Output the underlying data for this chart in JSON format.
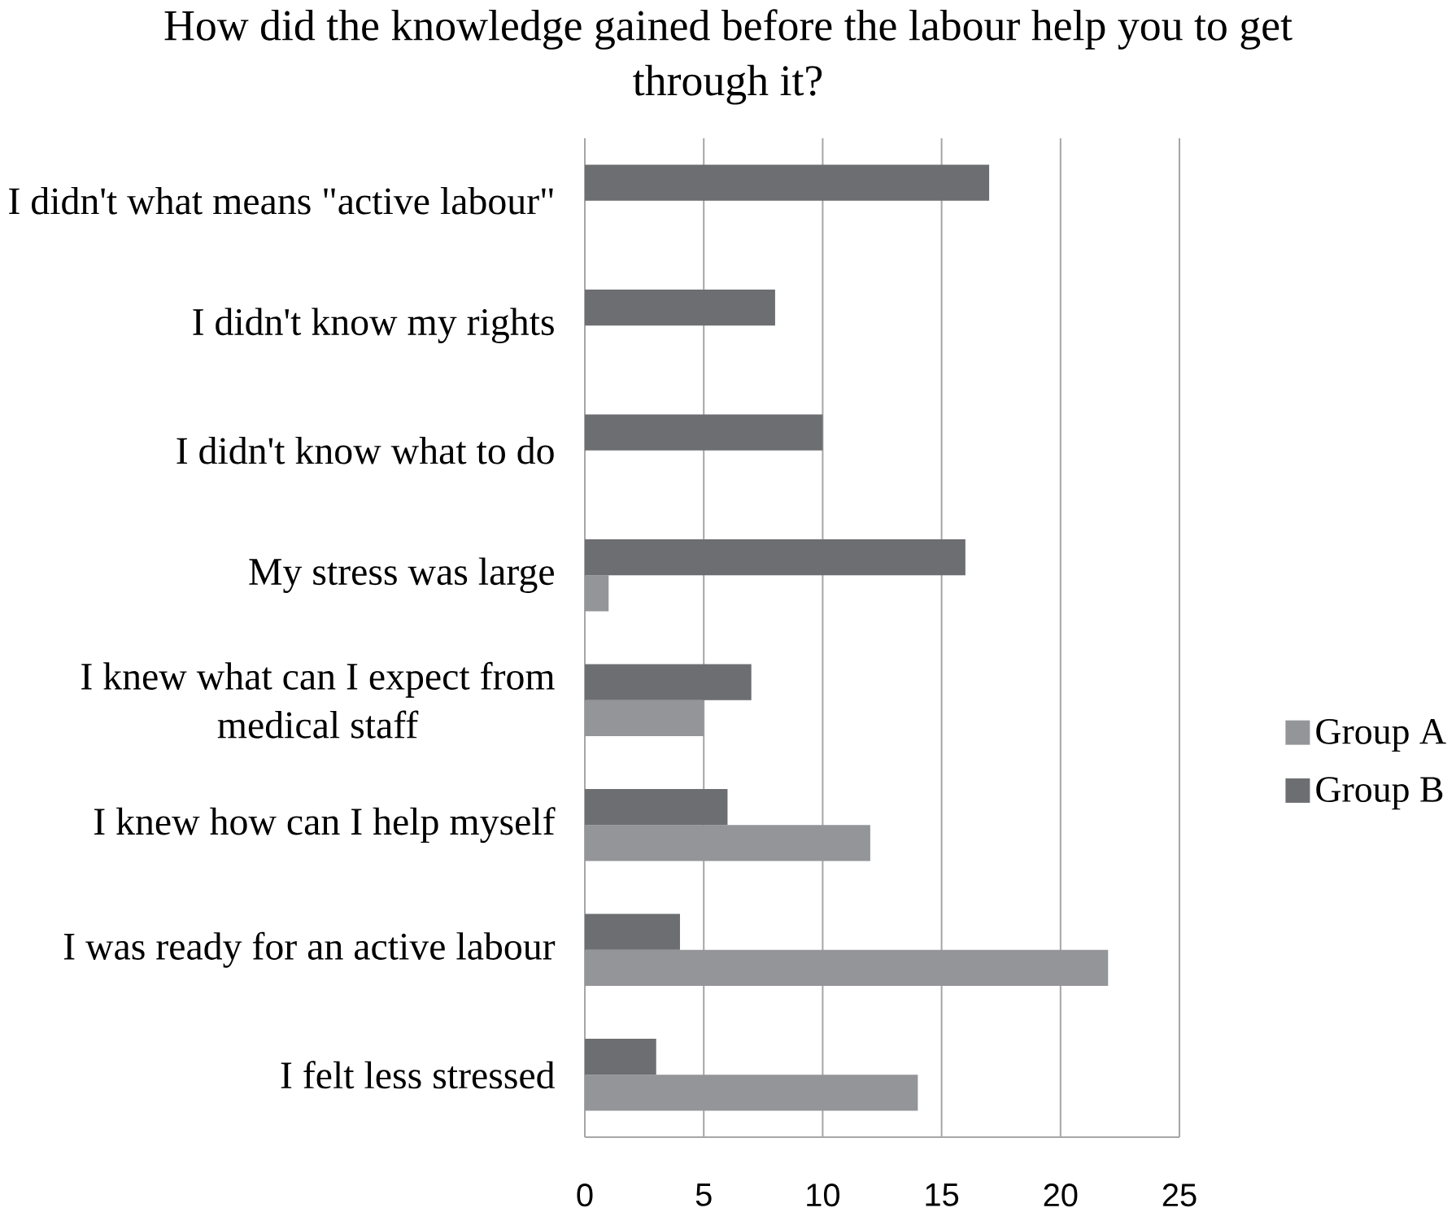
{
  "chart_data": {
    "type": "bar",
    "orientation": "horizontal",
    "title": "How did the knowledge gained before the labour help you to get through it?",
    "categories": [
      "I didn't what means \"active labour\"",
      "I didn't know my rights",
      "I didn't know what to do",
      "My stress was large",
      "I knew what can I expect from medical staff",
      "I knew how can I help myself",
      "I was ready for an active labour",
      "I felt less stressed"
    ],
    "series": [
      {
        "name": "Group A",
        "color": "#939598",
        "values": [
          0,
          0,
          0,
          1,
          5,
          12,
          22,
          14
        ]
      },
      {
        "name": "Group B",
        "color": "#6d6e71",
        "values": [
          17,
          8,
          10,
          16,
          7,
          6,
          4,
          3
        ]
      }
    ],
    "xlim": [
      0,
      25
    ],
    "xticks": [
      0,
      5,
      10,
      15,
      20,
      25
    ],
    "grid": "x",
    "legend": "right"
  }
}
